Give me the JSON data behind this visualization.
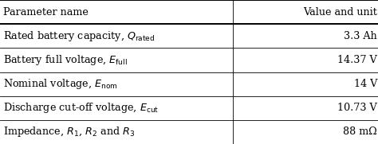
{
  "col_headers": [
    "Parameter name",
    "Value and unit"
  ],
  "rows": [
    [
      "Rated battery capacity, $Q_\\mathrm{rated}$",
      "3.3 Ah"
    ],
    [
      "Battery full voltage, $E_\\mathrm{full}$",
      "14.37 V"
    ],
    [
      "Nominal voltage, $E_\\mathrm{nom}$",
      "14 V"
    ],
    [
      "Discharge cut-off voltage, $E_\\mathrm{cut}$",
      "10.73 V"
    ],
    [
      "Impedance, $R_1$, $R_2$ and $R_3$",
      "88 mΩ"
    ]
  ],
  "col_split": 0.615,
  "bg_color": "#ffffff",
  "text_color": "#000000",
  "line_color": "#000000",
  "font_size": 9.2,
  "lw_thick": 1.4,
  "lw_thin": 0.6,
  "fig_width": 4.74,
  "fig_height": 1.81,
  "dpi": 100
}
